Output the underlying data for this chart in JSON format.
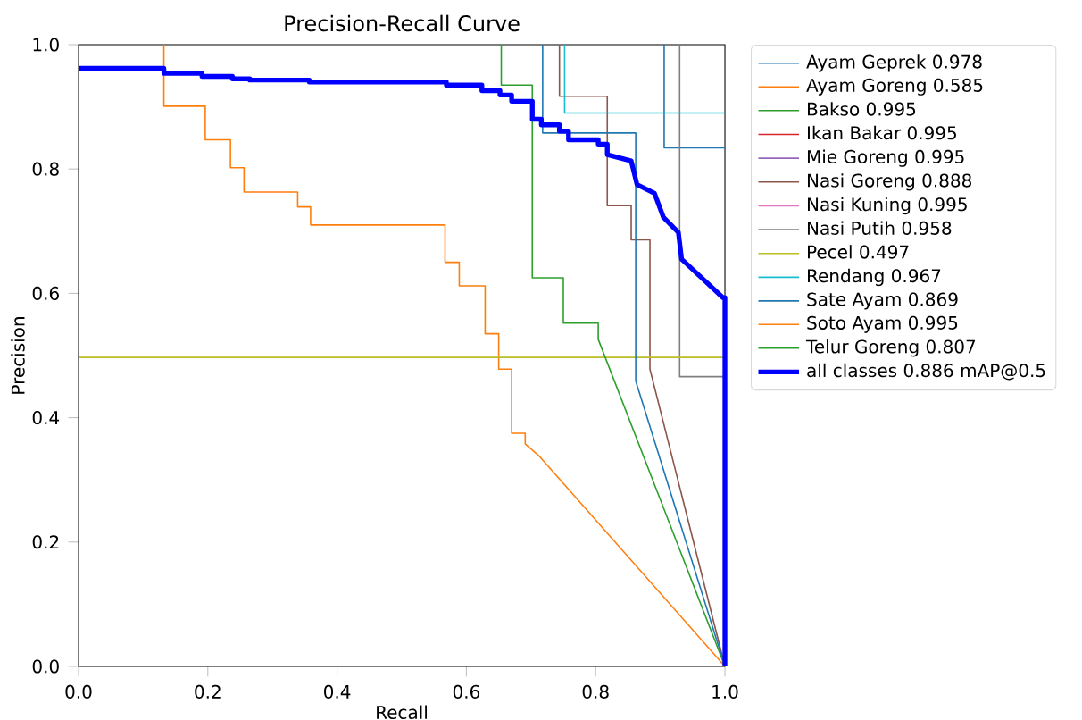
{
  "chart_data": {
    "type": "line",
    "title": "Precision-Recall Curve",
    "xlabel": "Recall",
    "ylabel": "Precision",
    "xlim": [
      0,
      1
    ],
    "ylim": [
      0,
      1
    ],
    "xticks": [
      {
        "value": 0,
        "label": "0.0"
      },
      0.2,
      0.4,
      0.6,
      0.8,
      {
        "value": 1,
        "label": "1.0"
      }
    ],
    "yticks": [
      {
        "value": 0,
        "label": "0.0"
      },
      0.2,
      0.4,
      0.6,
      0.8,
      {
        "value": 1,
        "label": "1.0"
      }
    ],
    "legend": "top right",
    "grid": false,
    "marker": "none",
    "line_style": "solid",
    "series": [
      {
        "name": "Ayam Geprek 0.978",
        "color": "#1f77b4",
        "x": [
          0.906,
          0.906,
          1
        ],
        "values": [
          1,
          0.834,
          0.834
        ]
      },
      {
        "name": "Ayam Goreng 0.585",
        "color": "#ff7f0e",
        "x": [
          0.132,
          0.132,
          0.196,
          0.196,
          0.235,
          0.235,
          0.256,
          0.256,
          0.339,
          0.339,
          0.359,
          0.359,
          0.567,
          0.567,
          0.589,
          0.589,
          0.629,
          0.629,
          0.65,
          0.65,
          0.67,
          0.67,
          0.691,
          0.691,
          0.712,
          1
        ],
        "values": [
          1,
          0.901,
          0.901,
          0.847,
          0.847,
          0.802,
          0.802,
          0.763,
          0.763,
          0.739,
          0.739,
          0.71,
          0.71,
          0.65,
          0.65,
          0.612,
          0.612,
          0.535,
          0.535,
          0.478,
          0.478,
          0.375,
          0.375,
          0.358,
          0.339,
          0
        ]
      },
      {
        "name": "Bakso 0.995",
        "color": "#2ca02c"
      },
      {
        "name": "Ikan Bakar 0.995",
        "color": "#d62728"
      },
      {
        "name": "Mie Goreng 0.995",
        "color": "#9467bd"
      },
      {
        "name": "Nasi Goreng 0.888",
        "color": "#8c564b",
        "x": [
          0.744,
          0.744,
          0.818,
          0.818,
          0.855,
          0.855,
          0.884,
          0.884,
          1
        ],
        "values": [
          1,
          0.917,
          0.917,
          0.741,
          0.741,
          0.686,
          0.686,
          0.478,
          0
        ]
      },
      {
        "name": "Nasi Kuning 0.995",
        "color": "#e377c2"
      },
      {
        "name": "Nasi Putih 0.958",
        "color": "#7f7f7f",
        "x": [
          0.93,
          0.93,
          1
        ],
        "values": [
          1,
          0.466,
          0.466
        ]
      },
      {
        "name": "Pecel 0.497",
        "color": "#bcbd22",
        "x": [
          0,
          1
        ],
        "values": [
          0.497,
          0.497
        ]
      },
      {
        "name": "Rendang 0.967",
        "color": "#17becf",
        "x": [
          0.752,
          0.752,
          1
        ],
        "values": [
          1,
          0.89,
          0.89
        ]
      },
      {
        "name": "Sate Ayam 0.869",
        "color": "#1f77b4",
        "x": [
          0.718,
          0.718,
          0.862,
          0.862,
          1
        ],
        "values": [
          1,
          0.858,
          0.858,
          0.459,
          0
        ]
      },
      {
        "name": "Soto Ayam 0.995",
        "color": "#ff7f0e"
      },
      {
        "name": "Telur Goreng 0.807",
        "color": "#2ca02c",
        "x": [
          0.654,
          0.654,
          0.702,
          0.702,
          0.75,
          0.75,
          0.804,
          0.804,
          1
        ],
        "values": [
          1,
          0.935,
          0.935,
          0.625,
          0.625,
          0.552,
          0.552,
          0.526,
          0
        ]
      },
      {
        "name": "all classes 0.886 mAP@0.5",
        "color": "#0000ff",
        "x": [
          0,
          0.132,
          0.132,
          0.191,
          0.191,
          0.238,
          0.238,
          0.265,
          0.265,
          0.357,
          0.357,
          0.569,
          0.569,
          0.624,
          0.624,
          0.652,
          0.652,
          0.67,
          0.67,
          0.702,
          0.702,
          0.716,
          0.716,
          0.744,
          0.744,
          0.758,
          0.758,
          0.804,
          0.804,
          0.818,
          0.818,
          0.855,
          0.864,
          0.891,
          0.905,
          0.928,
          0.933,
          0.997,
          1,
          1
        ],
        "values": [
          0.962,
          0.962,
          0.954,
          0.954,
          0.949,
          0.949,
          0.945,
          0.945,
          0.943,
          0.943,
          0.94,
          0.94,
          0.935,
          0.935,
          0.926,
          0.926,
          0.919,
          0.919,
          0.909,
          0.909,
          0.88,
          0.88,
          0.871,
          0.871,
          0.861,
          0.861,
          0.847,
          0.847,
          0.84,
          0.84,
          0.823,
          0.813,
          0.775,
          0.761,
          0.722,
          0.698,
          0.655,
          0.593,
          0.593,
          0
        ]
      }
    ]
  }
}
